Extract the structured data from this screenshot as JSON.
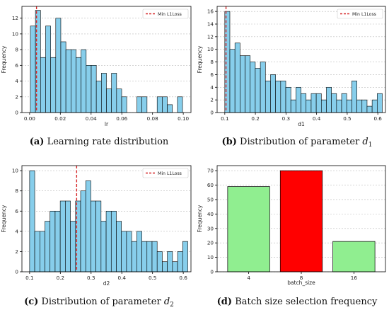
{
  "chart_data": [
    {
      "type": "bar",
      "subtype": "histogram",
      "xlabel": "lr",
      "ylabel": "Frequency",
      "xlim": [
        -0.005,
        0.105
      ],
      "ylim": [
        0,
        13.5
      ],
      "xticks": [
        0.0,
        0.02,
        0.04,
        0.06,
        0.08,
        0.1
      ],
      "xtick_labels": [
        "0.00",
        "0.02",
        "0.04",
        "0.06",
        "0.08",
        "0.10"
      ],
      "yticks": [
        0,
        2,
        4,
        6,
        8,
        10,
        12
      ],
      "ytick_labels": [
        "0",
        "2",
        "4",
        "6",
        "8",
        "10",
        "12"
      ],
      "bin_start": 0.0005,
      "bin_width": 0.0033,
      "values": [
        11,
        13,
        7,
        11,
        7,
        12,
        9,
        8,
        8,
        7,
        8,
        6,
        6,
        4,
        5,
        3,
        5,
        3,
        2,
        0,
        0,
        2,
        2,
        0,
        0,
        2,
        2,
        1,
        0,
        2
      ],
      "bar_color": "#87ceeb",
      "edge_color": "#000000",
      "vline": {
        "x": 0.0045,
        "label": "Min L1Loss",
        "color": "#d62728"
      },
      "legend_position": "top-right",
      "grid": "horizontal dashed",
      "caption_label": "(a)",
      "caption_text": "Learning rate distribution"
    },
    {
      "type": "bar",
      "subtype": "histogram",
      "xlabel": "d1",
      "ylabel": "Frequency",
      "xlim": [
        0.075,
        0.625
      ],
      "ylim": [
        0,
        16.8
      ],
      "xticks": [
        0.1,
        0.2,
        0.3,
        0.4,
        0.5,
        0.6
      ],
      "xtick_labels": [
        "0.1",
        "0.2",
        "0.3",
        "0.4",
        "0.5",
        "0.6"
      ],
      "yticks": [
        0,
        2,
        4,
        6,
        8,
        10,
        12,
        14,
        16
      ],
      "ytick_labels": [
        "0",
        "2",
        "4",
        "6",
        "8",
        "10",
        "12",
        "14",
        "16"
      ],
      "bin_start": 0.1,
      "bin_width": 0.0166,
      "values": [
        16,
        10,
        11,
        9,
        9,
        8,
        7,
        8,
        5,
        6,
        5,
        5,
        4,
        2,
        4,
        3,
        2,
        3,
        3,
        2,
        4,
        3,
        2,
        3,
        2,
        5,
        2,
        2,
        1,
        2,
        3
      ],
      "bar_color": "#87ceeb",
      "edge_color": "#000000",
      "vline": {
        "x": 0.104,
        "label": "Min L1Loss",
        "color": "#d62728"
      },
      "legend_position": "top-right",
      "grid": "horizontal dashed",
      "caption_label": "(b)",
      "caption_text": "Distribution of parameter",
      "caption_math": "d",
      "caption_sub": "1"
    },
    {
      "type": "bar",
      "subtype": "histogram",
      "xlabel": "d2",
      "ylabel": "Frequency",
      "xlim": [
        0.075,
        0.625
      ],
      "ylim": [
        0,
        10.5
      ],
      "xticks": [
        0.1,
        0.2,
        0.3,
        0.4,
        0.5,
        0.6
      ],
      "xtick_labels": [
        "0.1",
        "0.2",
        "0.3",
        "0.4",
        "0.5",
        "0.6"
      ],
      "yticks": [
        0,
        2,
        4,
        6,
        8,
        10
      ],
      "ytick_labels": [
        "0",
        "2",
        "4",
        "6",
        "8",
        "10"
      ],
      "bin_start": 0.1,
      "bin_width": 0.0166,
      "values": [
        10,
        4,
        4,
        5,
        6,
        6,
        7,
        7,
        5,
        7,
        8,
        9,
        7,
        7,
        5,
        6,
        6,
        5,
        4,
        4,
        3,
        4,
        3,
        3,
        3,
        2,
        1,
        2,
        1,
        2,
        3
      ],
      "bar_color": "#87ceeb",
      "edge_color": "#000000",
      "vline": {
        "x": 0.253,
        "label": "Min L1Loss",
        "color": "#d62728"
      },
      "legend_position": "top-right",
      "grid": "horizontal dashed",
      "caption_label": "(c)",
      "caption_text": "Distribution of parameter",
      "caption_math": "d",
      "caption_sub": "2"
    },
    {
      "type": "bar",
      "xlabel": "batch_size",
      "ylabel": "Frequency",
      "categories": [
        "4",
        "8",
        "16"
      ],
      "values": [
        59,
        70,
        21
      ],
      "bar_colors": [
        "#90ee90",
        "#ff0000",
        "#90ee90"
      ],
      "edge_color": "#000000",
      "ylim": [
        0,
        73.5
      ],
      "yticks": [
        0,
        10,
        20,
        30,
        40,
        50,
        60,
        70
      ],
      "ytick_labels": [
        "0",
        "10",
        "20",
        "30",
        "40",
        "50",
        "60",
        "70"
      ],
      "grid": "horizontal dashed",
      "caption_label": "(d)",
      "caption_text": "Batch size selection frequency"
    }
  ]
}
